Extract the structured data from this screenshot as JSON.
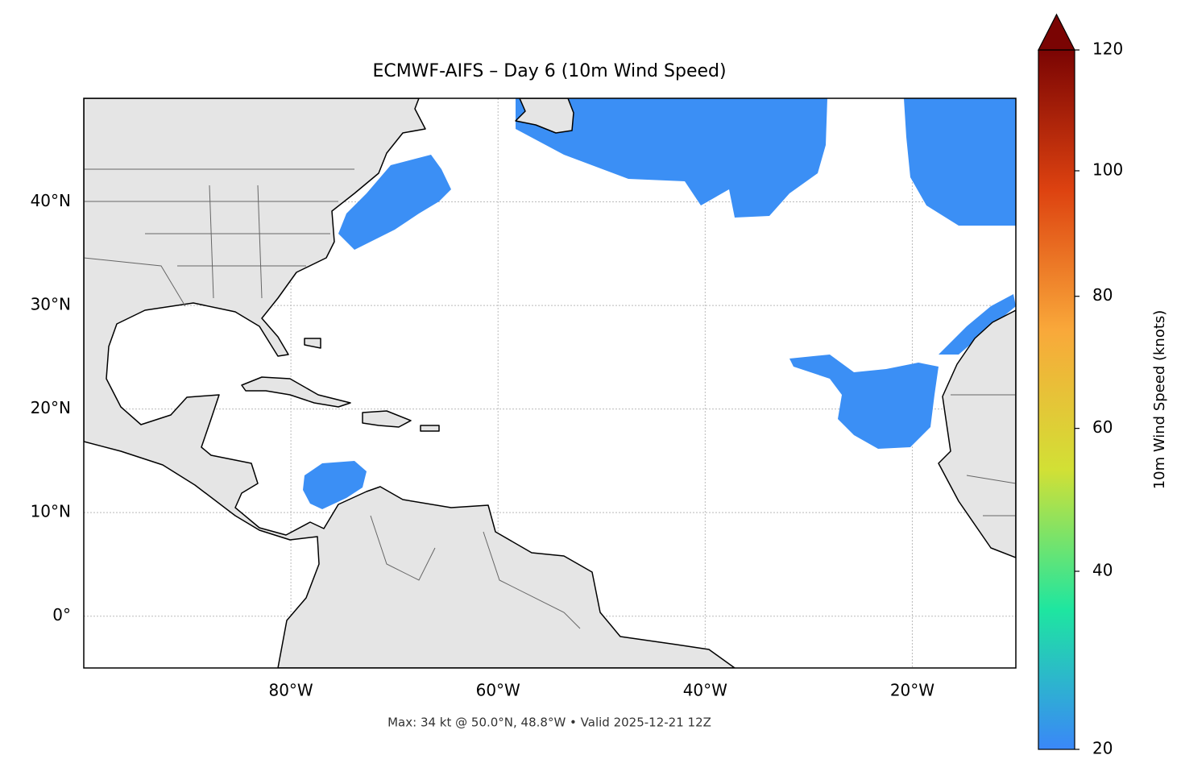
{
  "map": {
    "title": "ECMWF-AIFS – Day 6 (10m Wind Speed)",
    "footer": "Max: 34 kt @ 50.0°N, 48.8°W • Valid 2025-12-21 12Z",
    "xlim": [
      -100,
      -10
    ],
    "ylim": [
      -5,
      50
    ],
    "xticks": [
      {
        "value": -80,
        "label": "80°W"
      },
      {
        "value": -60,
        "label": "60°W"
      },
      {
        "value": -40,
        "label": "40°W"
      },
      {
        "value": -20,
        "label": "20°W"
      }
    ],
    "yticks": [
      {
        "value": 0,
        "label": "0°"
      },
      {
        "value": 10,
        "label": "10°N"
      },
      {
        "value": 20,
        "label": "20°N"
      },
      {
        "value": 30,
        "label": "30°N"
      },
      {
        "value": 40,
        "label": "40°N"
      }
    ],
    "grid": true,
    "colorbar": {
      "label": "10m Wind Speed (knots)",
      "lim": [
        20,
        120
      ],
      "ticks": [
        20,
        40,
        60,
        80,
        100,
        120
      ],
      "norm": {
        "type": "power",
        "gamma": 0.85
      },
      "colors": [
        "#3a87f8",
        "#1ee6a0",
        "#d2e035",
        "#f9a83a",
        "#dd4210",
        "#7a0403"
      ]
    }
  }
}
